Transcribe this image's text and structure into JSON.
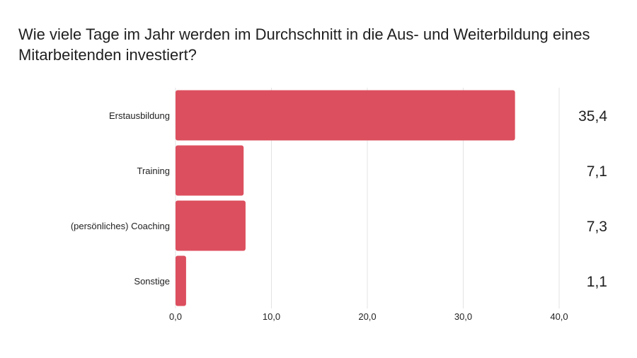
{
  "chart_data": {
    "type": "bar",
    "orientation": "horizontal",
    "title": "Wie viele Tage im Jahr werden im Durchschnitt in die Aus- und Weiterbildung eines Mitarbeitenden investiert?",
    "categories": [
      "Erstausbildung",
      "Training",
      "(persönliches) Coaching",
      "Sonstige"
    ],
    "values": [
      35.4,
      7.1,
      7.3,
      1.1
    ],
    "value_labels": [
      "35,4",
      "7,1",
      "7,3",
      "1,1"
    ],
    "xlim": [
      0,
      40
    ],
    "x_ticks": [
      0,
      10,
      20,
      30,
      40
    ],
    "x_tick_labels": [
      "0,0",
      "10,0",
      "20,0",
      "30,0",
      "40,0"
    ],
    "grid": "vertical",
    "bar_color": "#dc4f5e",
    "grid_color": "#e3e3e3"
  }
}
